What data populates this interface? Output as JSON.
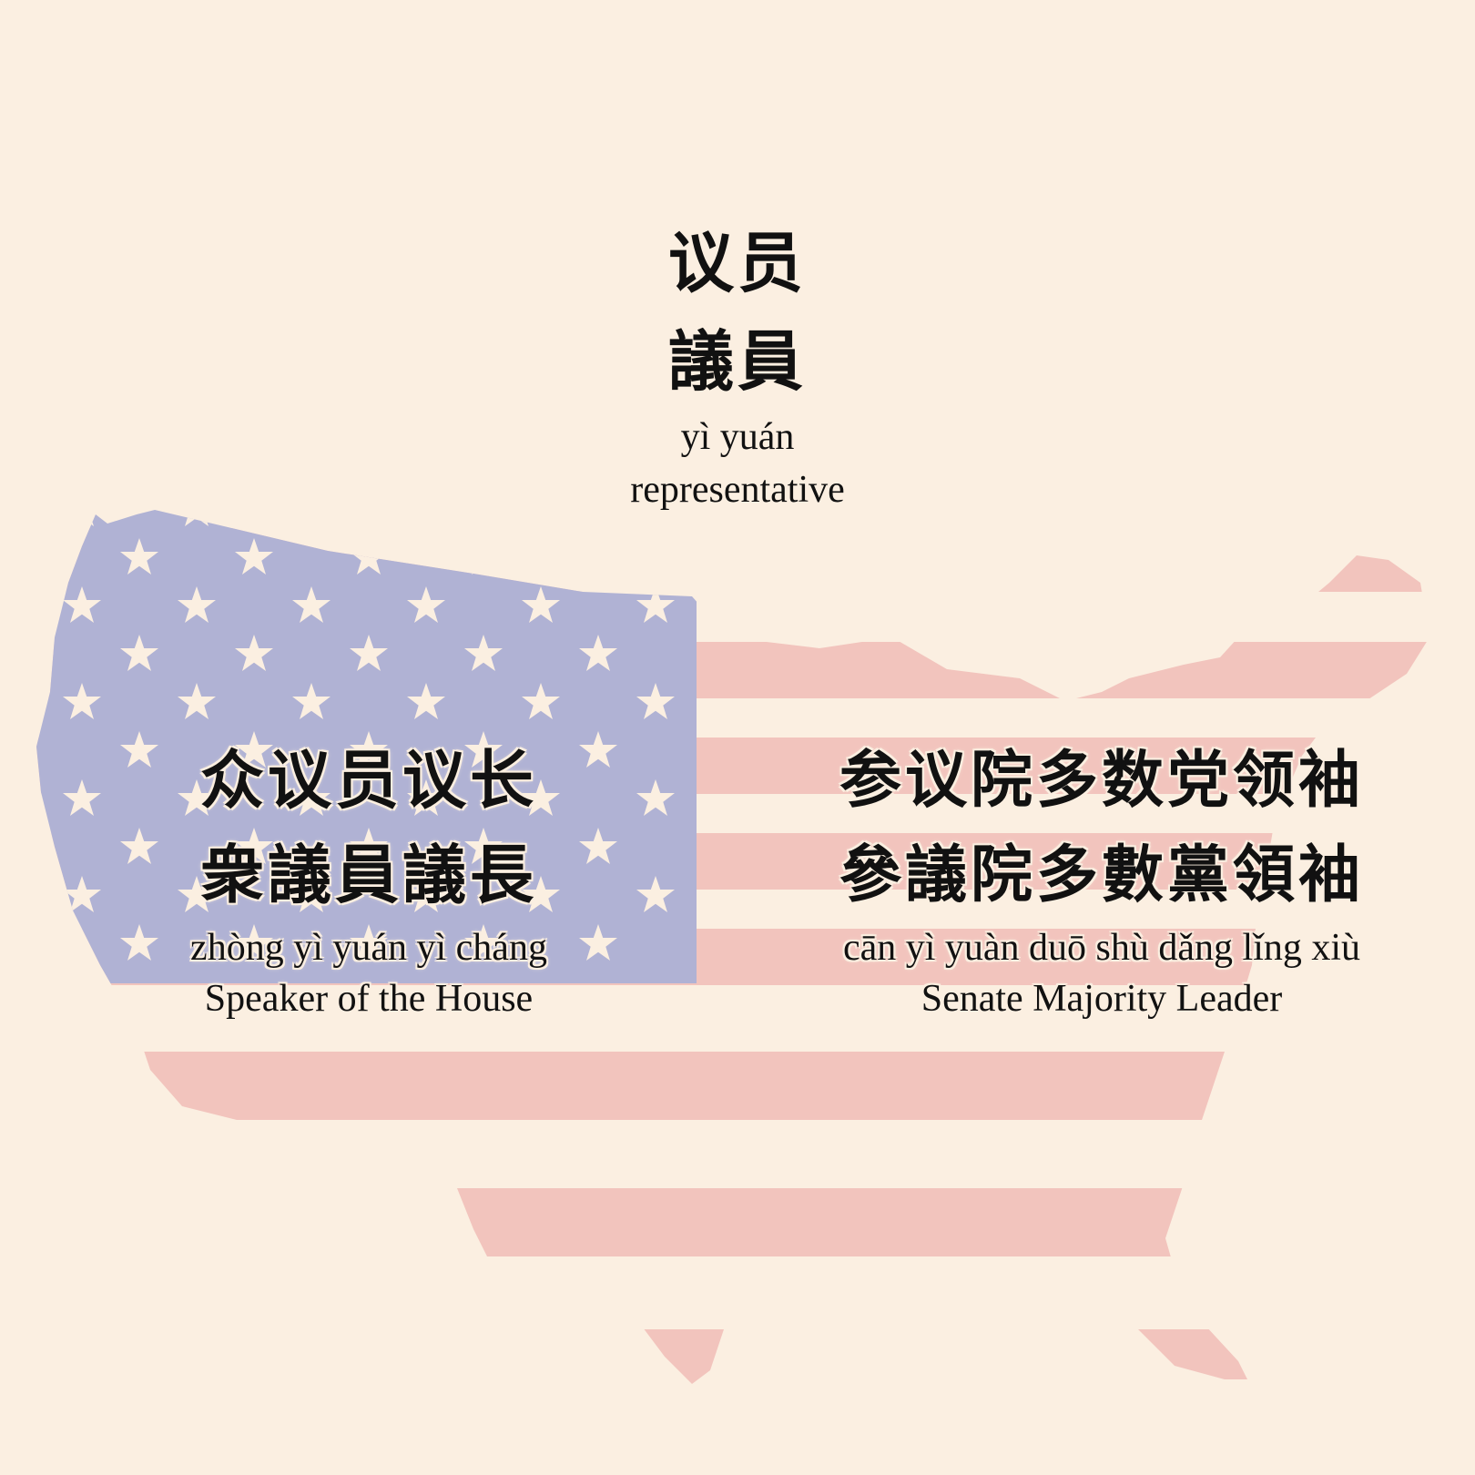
{
  "background_color": "#fbefe1",
  "flag_colors": {
    "canton": "#b0b2d4",
    "stripe": "#f2c4bd",
    "star": "#fbefe1"
  },
  "top_term": {
    "simplified": "议员",
    "traditional": "議員",
    "pinyin": "yì yuán",
    "english": "representative"
  },
  "left_term": {
    "simplified": "众议员议长",
    "traditional": "衆議員議長",
    "pinyin": "zhòng yì yuán yì cháng",
    "english": "Speaker of the House"
  },
  "right_term": {
    "simplified": "参议院多数党领袖",
    "traditional": "參議院多數黨領袖",
    "pinyin": "cān yì yuàn duō shù dǎng lǐng xiù",
    "english": "Senate Majority Leader"
  },
  "decor": {
    "map_icon": "usa-flag-map-icon",
    "star_icon": "star-icon"
  }
}
